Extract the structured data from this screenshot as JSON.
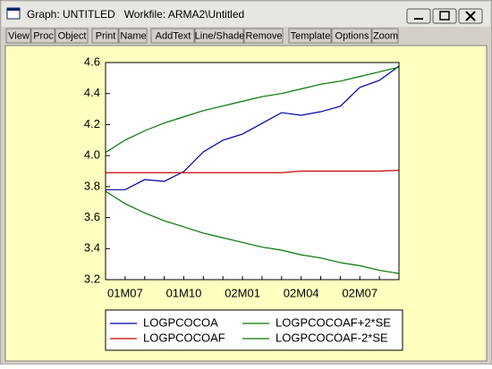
{
  "window": {
    "title": "Graph: UNTITLED   Workfile: ARMA2\\Untitled",
    "toolbar": [
      "View",
      "Proc",
      "Object",
      "Print",
      "Name",
      "AddText",
      "Line/Shade",
      "Remove",
      "Template",
      "Options",
      "Zoom"
    ]
  },
  "chart_data": {
    "type": "line",
    "categories": [
      null,
      "01M07",
      null,
      null,
      "01M10",
      null,
      null,
      "02M01",
      null,
      null,
      "02M04",
      null,
      null,
      "02M07",
      null,
      null
    ],
    "series": [
      {
        "name": "LOGPCOCOA",
        "color": "#0000aa",
        "values": [
          3.78,
          3.78,
          3.845,
          3.834,
          3.897,
          4.024,
          4.099,
          4.139,
          4.208,
          4.277,
          4.26,
          4.283,
          4.318,
          4.44,
          4.485,
          4.577
        ]
      },
      {
        "name": "LOGPCOCOAF",
        "color": "#cc0000",
        "values": [
          3.89,
          3.89,
          3.89,
          3.89,
          3.89,
          3.89,
          3.89,
          3.89,
          3.89,
          3.89,
          3.9,
          3.9,
          3.9,
          3.9,
          3.9,
          3.905
        ]
      },
      {
        "name": "LOGPCOCOAF+2*SE",
        "color": "#007700",
        "values": [
          4.02,
          4.1,
          4.16,
          4.21,
          4.25,
          4.29,
          4.32,
          4.35,
          4.38,
          4.4,
          4.43,
          4.46,
          4.48,
          4.51,
          4.54,
          4.57
        ]
      },
      {
        "name": "LOGPCOCOAF-2*SE",
        "color": "#007700",
        "values": [
          3.77,
          3.69,
          3.63,
          3.58,
          3.54,
          3.5,
          3.47,
          3.44,
          3.41,
          3.39,
          3.36,
          3.34,
          3.31,
          3.29,
          3.26,
          3.24
        ]
      }
    ],
    "ylim": [
      3.2,
      4.6
    ],
    "yticks": [
      3.2,
      3.4,
      3.6,
      3.8,
      {
        "value": 4,
        "label": "4.0"
      },
      4.2,
      4.4,
      4.6
    ]
  }
}
